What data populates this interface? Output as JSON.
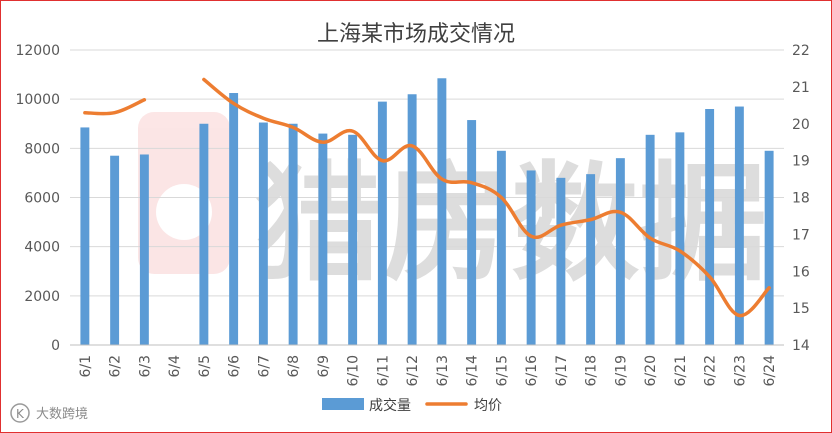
{
  "chart_data": {
    "type": "bar+line",
    "title": "上海某市场成交情况",
    "categories": [
      "6/1",
      "6/2",
      "6/3",
      "6/4",
      "6/5",
      "6/6",
      "6/7",
      "6/8",
      "6/9",
      "6/10",
      "6/11",
      "6/12",
      "6/13",
      "6/14",
      "6/15",
      "6/16",
      "6/17",
      "6/18",
      "6/19",
      "6/20",
      "6/21",
      "6/22",
      "6/23",
      "6/24"
    ],
    "series": [
      {
        "name": "成交量",
        "type": "bar",
        "axis": "left",
        "color": "#5b9bd5",
        "values": [
          8850,
          7700,
          7750,
          null,
          9000,
          10250,
          9050,
          9000,
          8600,
          8550,
          9900,
          10200,
          10850,
          9150,
          7900,
          7100,
          6800,
          6950,
          7600,
          8550,
          8650,
          9600,
          9700,
          7900
        ]
      },
      {
        "name": "均价",
        "type": "line",
        "axis": "right",
        "color": "#ed7d31",
        "values": [
          20.3,
          20.3,
          20.65,
          null,
          21.2,
          20.55,
          20.15,
          19.9,
          19.5,
          19.8,
          19.0,
          19.4,
          18.5,
          18.4,
          18.0,
          16.95,
          17.25,
          17.4,
          17.6,
          16.9,
          16.55,
          15.85,
          14.8,
          15.55
        ]
      }
    ],
    "y_left": {
      "min": 0,
      "max": 12000,
      "ticks": [
        0,
        2000,
        4000,
        6000,
        8000,
        10000,
        12000
      ]
    },
    "y_right": {
      "min": 14,
      "max": 22,
      "ticks": [
        14,
        15,
        16,
        17,
        18,
        19,
        20,
        21,
        22
      ]
    },
    "legend": "bottom",
    "grid": true,
    "gridline_color": "#d9d9d9"
  },
  "watermark": {
    "center_text": "猎房数据",
    "corner_text": "大数跨境",
    "corner_symbol": "K"
  }
}
